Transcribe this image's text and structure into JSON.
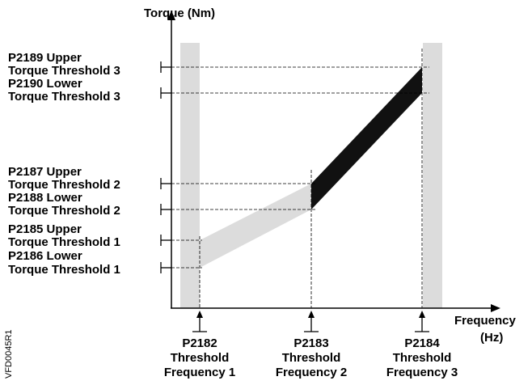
{
  "axes": {
    "y_title": "Torque (Nm)",
    "x_title_line1": "Frequency",
    "x_title_line2": "(Hz)"
  },
  "y_labels": [
    {
      "id": "p2189",
      "line1": "P2189 Upper",
      "line2": "Torque Threshold 3"
    },
    {
      "id": "p2190",
      "line1": "P2190 Lower",
      "line2": "Torque Threshold 3"
    },
    {
      "id": "p2187",
      "line1": "P2187 Upper",
      "line2": "Torque Threshold 2"
    },
    {
      "id": "p2188",
      "line1": "P2188 Lower",
      "line2": "Torque Threshold 2"
    },
    {
      "id": "p2185",
      "line1": "P2185 Upper",
      "line2": "Torque Threshold 1"
    },
    {
      "id": "p2186",
      "line1": "P2186 Lower",
      "line2": "Torque Threshold 1"
    }
  ],
  "x_labels": [
    {
      "id": "p2182",
      "line1": "P2182",
      "line2": "Threshold",
      "line3": "Frequency 1"
    },
    {
      "id": "p2183",
      "line1": "P2183",
      "line2": "Threshold",
      "line3": "Frequency 2"
    },
    {
      "id": "p2184",
      "line1": "P2184",
      "line2": "Threshold",
      "line3": "Frequency 3"
    }
  ],
  "figure_id": "VFD0045R1",
  "colors": {
    "light_band": "#dcdcdc",
    "dark_band": "#111111",
    "line": "#000000"
  }
}
